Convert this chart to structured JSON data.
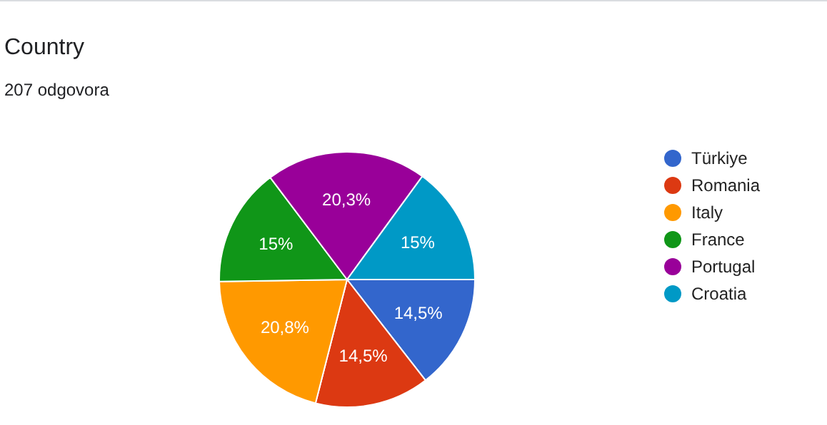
{
  "chart_data": {
    "type": "pie",
    "title": "Country",
    "subtitle": "207 odgovora",
    "categories": [
      "Türkiye",
      "Romania",
      "Italy",
      "France",
      "Portugal",
      "Croatia"
    ],
    "values": [
      14.5,
      14.5,
      20.8,
      15,
      20.3,
      15
    ],
    "value_labels": [
      "14,5%",
      "14,5%",
      "20,8%",
      "15%",
      "20,3%",
      "15%"
    ],
    "colors": [
      "#3366cc",
      "#dc3912",
      "#ff9900",
      "#109618",
      "#990099",
      "#0099c6"
    ],
    "legend": "right"
  }
}
